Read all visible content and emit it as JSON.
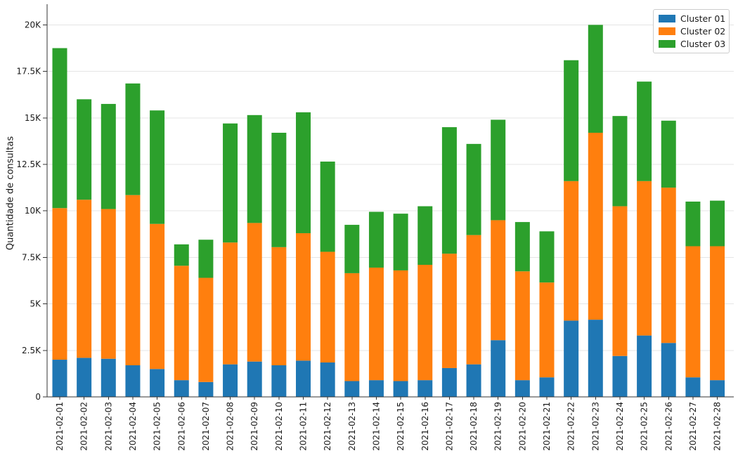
{
  "figure": {
    "background": "#ffffff",
    "grid_color": "#e5e5e5",
    "spine_color": "#333333",
    "tick_color": "#333333",
    "text_color": "#1a1a1a"
  },
  "chart_data": {
    "type": "bar",
    "stacked": true,
    "title": "",
    "xlabel": "",
    "ylabel": "Quantidade de consultas",
    "ylim": [
      0,
      20000
    ],
    "ytick_values": [
      0,
      2500,
      5000,
      7500,
      10000,
      12500,
      15000,
      17500,
      20000
    ],
    "ytick_labels": [
      "0",
      "2.5K",
      "5K",
      "7.5K",
      "10K",
      "12.5K",
      "15K",
      "17.5K",
      "20K"
    ],
    "grid": true,
    "legend_position": "upper right",
    "categories": [
      "2021-02-01",
      "2021-02-02",
      "2021-02-03",
      "2021-02-04",
      "2021-02-05",
      "2021-02-06",
      "2021-02-07",
      "2021-02-08",
      "2021-02-09",
      "2021-02-10",
      "2021-02-11",
      "2021-02-12",
      "2021-02-13",
      "2021-02-14",
      "2021-02-15",
      "2021-02-16",
      "2021-02-17",
      "2021-02-18",
      "2021-02-19",
      "2021-02-20",
      "2021-02-21",
      "2021-02-22",
      "2021-02-23",
      "2021-02-24",
      "2021-02-25",
      "2021-02-26",
      "2021-02-27",
      "2021-02-28"
    ],
    "series": [
      {
        "name": "Cluster 01",
        "color": "#1f77b4",
        "values": [
          2000,
          2100,
          2050,
          1700,
          1500,
          900,
          800,
          1750,
          1900,
          1700,
          1950,
          1850,
          850,
          900,
          850,
          900,
          1550,
          1750,
          3050,
          900,
          1050,
          4100,
          4150,
          2200,
          3300,
          2900,
          1050,
          900
        ]
      },
      {
        "name": "Cluster 02",
        "color": "#ff7f0e",
        "values": [
          8150,
          8500,
          8050,
          9150,
          7800,
          6150,
          5600,
          6550,
          7450,
          6350,
          6850,
          5950,
          5800,
          6050,
          5950,
          6200,
          6150,
          6950,
          6450,
          5850,
          5100,
          7500,
          10050,
          8050,
          8300,
          8350,
          7050,
          7200
        ]
      },
      {
        "name": "Cluster 03",
        "color": "#2ca02c",
        "values": [
          8600,
          5400,
          5650,
          6000,
          6100,
          1150,
          2050,
          6400,
          5800,
          6150,
          6500,
          4850,
          2600,
          3000,
          3050,
          3150,
          6800,
          4900,
          5400,
          2650,
          2750,
          6500,
          5800,
          4850,
          5350,
          3600,
          2400,
          2450
        ]
      }
    ]
  }
}
